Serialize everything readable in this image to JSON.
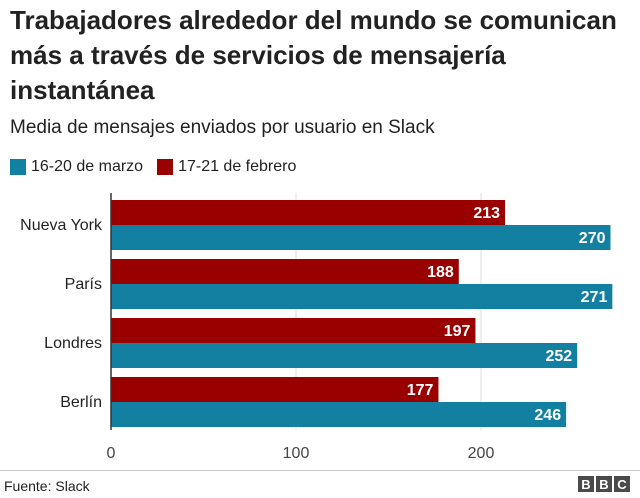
{
  "title": "Trabajadores alrededor del mundo se comunican más a través de servicios de mensajería instantánea",
  "subtitle": "Media de mensajes enviados por usuario en Slack",
  "source": "Fuente: Slack",
  "logo": [
    "B",
    "B",
    "C"
  ],
  "colors": {
    "febrero": "#990000",
    "marzo": "#1380A1",
    "axis": "#333333",
    "grid": "#dddddd"
  },
  "chart_data": {
    "type": "bar",
    "orientation": "horizontal",
    "categories": [
      "Nueva York",
      "París",
      "Londres",
      "Berlín"
    ],
    "series": [
      {
        "name": "17-21 de febrero",
        "values": [
          213,
          188,
          197,
          177
        ]
      },
      {
        "name": "16-20 de marzo",
        "values": [
          270,
          271,
          252,
          246
        ]
      }
    ],
    "legend_order": [
      "16-20 de marzo",
      "17-21 de febrero"
    ],
    "xticks": [
      0,
      100,
      200
    ],
    "xlim": [
      0,
      280
    ],
    "grid": true,
    "legend": "top-left"
  }
}
